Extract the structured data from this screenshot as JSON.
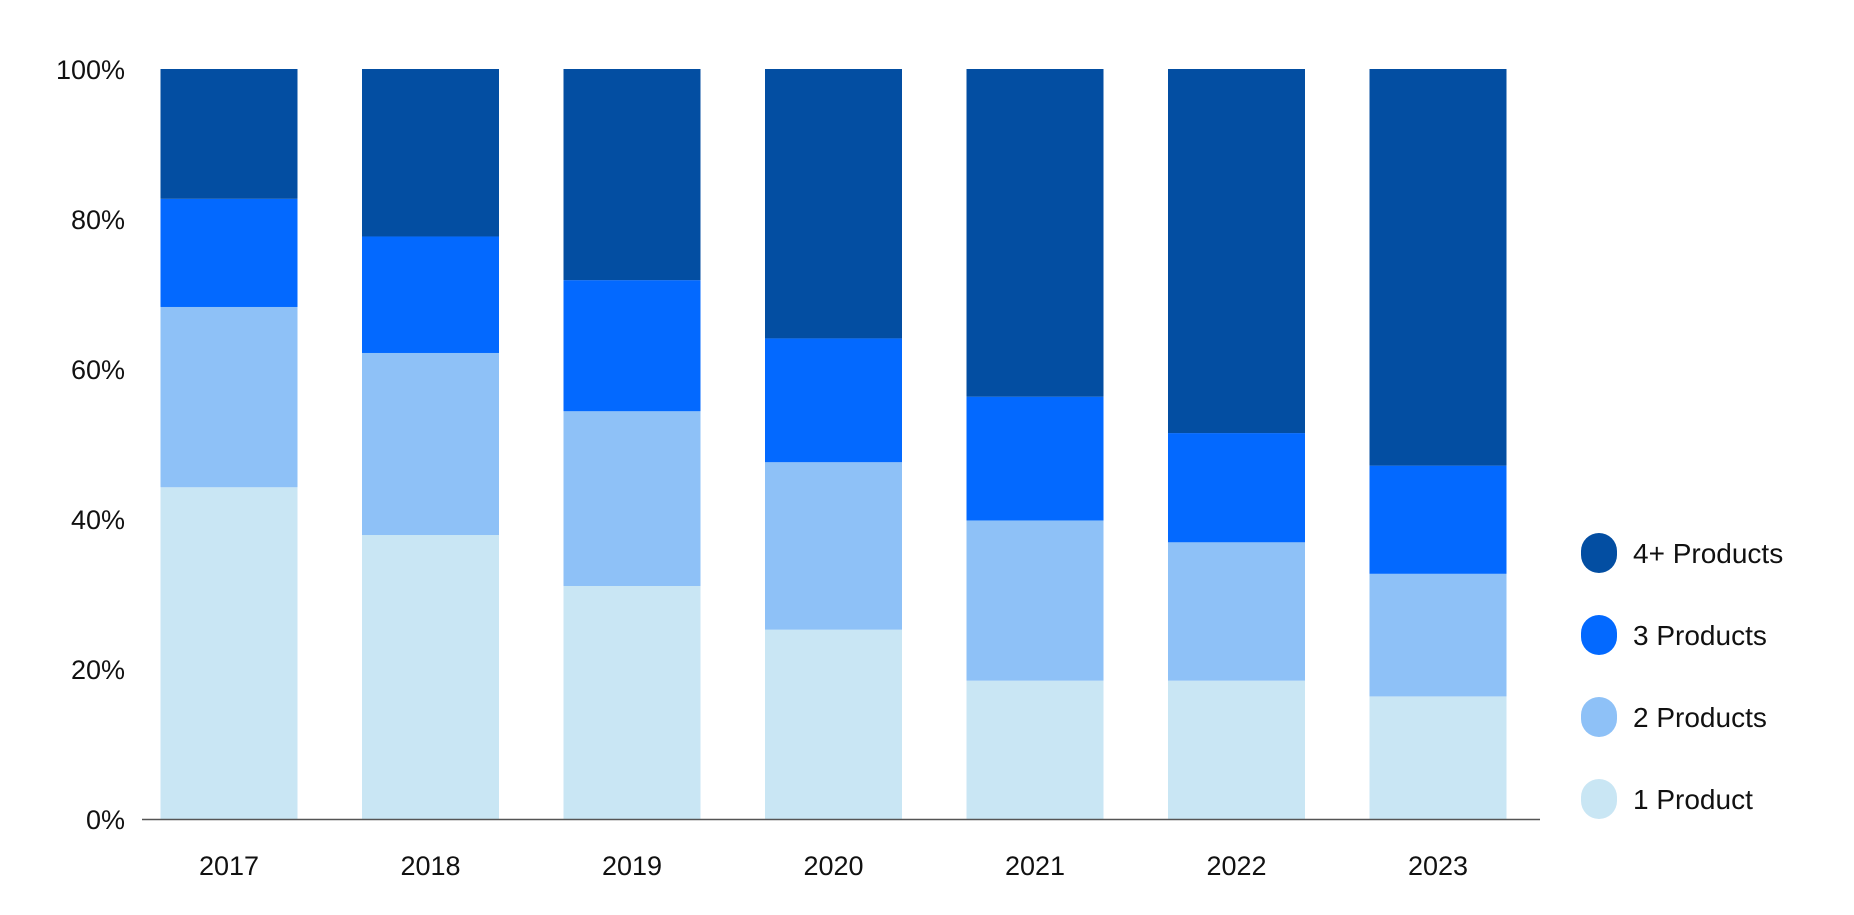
{
  "chart_data": {
    "type": "bar",
    "stacked": true,
    "normalized": true,
    "title": "",
    "xlabel": "",
    "ylabel": "",
    "categories": [
      "2017",
      "2018",
      "2019",
      "2020",
      "2021",
      "2022",
      "2023"
    ],
    "ylim": [
      0,
      100
    ],
    "yticks": [
      0,
      20,
      40,
      60,
      80,
      100
    ],
    "ytick_labels": [
      "0%",
      "20%",
      "40%",
      "60%",
      "80%",
      "100%"
    ],
    "grid": false,
    "legend_position": "right",
    "series": [
      {
        "name": "1 Product",
        "color": "#C9E6F4",
        "values": [
          46,
          39,
          32,
          26,
          19,
          19,
          17
        ]
      },
      {
        "name": "2 Products",
        "color": "#8EC1F7",
        "values": [
          25,
          25,
          24,
          23,
          22,
          19,
          17
        ]
      },
      {
        "name": "3 Products",
        "color": "#0369FF",
        "values": [
          15,
          16,
          18,
          17,
          17,
          15,
          15
        ]
      },
      {
        "name": "4+ Products",
        "color": "#034EA2",
        "values": [
          18,
          23,
          29,
          37,
          45,
          50,
          55
        ]
      }
    ],
    "legend_order": [
      "4+ Products",
      "3 Products",
      "2 Products",
      "1 Product"
    ]
  }
}
